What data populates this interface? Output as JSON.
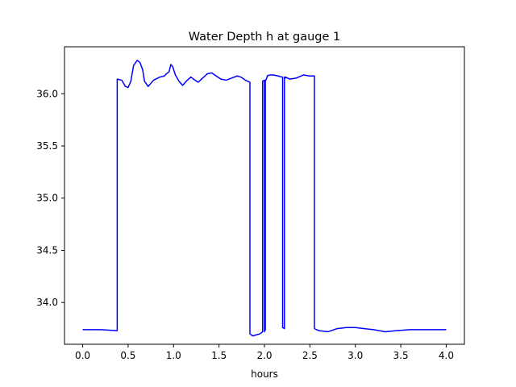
{
  "chart_data": {
    "type": "line",
    "title": "Water Depth h at gauge 1",
    "xlabel": "hours",
    "ylabel": "",
    "xlim": [
      -0.2,
      4.2
    ],
    "ylim": [
      33.6,
      36.45
    ],
    "xticks": [
      0.0,
      0.5,
      1.0,
      1.5,
      2.0,
      2.5,
      3.0,
      3.5,
      4.0
    ],
    "xtick_labels": [
      "0.0",
      "0.5",
      "1.0",
      "1.5",
      "2.0",
      "2.5",
      "3.0",
      "3.5",
      "4.0"
    ],
    "yticks": [
      34.0,
      34.5,
      35.0,
      35.5,
      36.0
    ],
    "ytick_labels": [
      "34.0",
      "34.5",
      "35.0",
      "35.5",
      "36.0"
    ],
    "grid": false,
    "legend": "none",
    "series": [
      {
        "color": "#0000ff",
        "x": [
          0.0,
          0.2,
          0.38,
          0.38,
          0.43,
          0.47,
          0.5,
          0.53,
          0.56,
          0.6,
          0.63,
          0.66,
          0.68,
          0.72,
          0.78,
          0.85,
          0.9,
          0.92,
          0.95,
          0.97,
          0.99,
          1.02,
          1.06,
          1.1,
          1.14,
          1.19,
          1.22,
          1.27,
          1.32,
          1.37,
          1.42,
          1.47,
          1.52,
          1.58,
          1.64,
          1.7,
          1.74,
          1.79,
          1.84,
          1.84,
          1.87,
          1.91,
          1.95,
          1.98,
          1.98,
          2.0,
          2.0,
          2.01,
          2.01,
          2.03,
          2.03,
          2.06,
          2.1,
          2.15,
          2.19,
          2.2,
          2.2,
          2.22,
          2.22,
          2.23,
          2.23,
          2.28,
          2.35,
          2.43,
          2.5,
          2.55,
          2.55,
          2.6,
          2.7,
          2.8,
          2.9,
          3.0,
          3.1,
          3.2,
          3.33,
          3.45,
          3.6,
          3.75,
          3.9,
          4.0
        ],
        "y": [
          33.74,
          33.74,
          33.73,
          36.14,
          36.13,
          36.07,
          36.06,
          36.12,
          36.27,
          36.32,
          36.3,
          36.23,
          36.12,
          36.07,
          36.13,
          36.16,
          36.17,
          36.19,
          36.21,
          36.28,
          36.26,
          36.18,
          36.12,
          36.08,
          36.12,
          36.16,
          36.14,
          36.11,
          36.15,
          36.19,
          36.2,
          36.17,
          36.14,
          36.13,
          36.15,
          36.17,
          36.16,
          36.13,
          36.11,
          33.7,
          33.68,
          33.69,
          33.7,
          33.72,
          36.12,
          36.13,
          33.72,
          33.74,
          36.12,
          36.16,
          36.17,
          36.18,
          36.18,
          36.17,
          36.16,
          36.16,
          33.76,
          33.75,
          36.16,
          36.15,
          36.16,
          36.14,
          36.15,
          36.18,
          36.17,
          36.17,
          33.75,
          33.73,
          33.72,
          33.75,
          33.76,
          33.76,
          33.75,
          33.74,
          33.72,
          33.73,
          33.74,
          33.74,
          33.74,
          33.74
        ]
      }
    ]
  }
}
